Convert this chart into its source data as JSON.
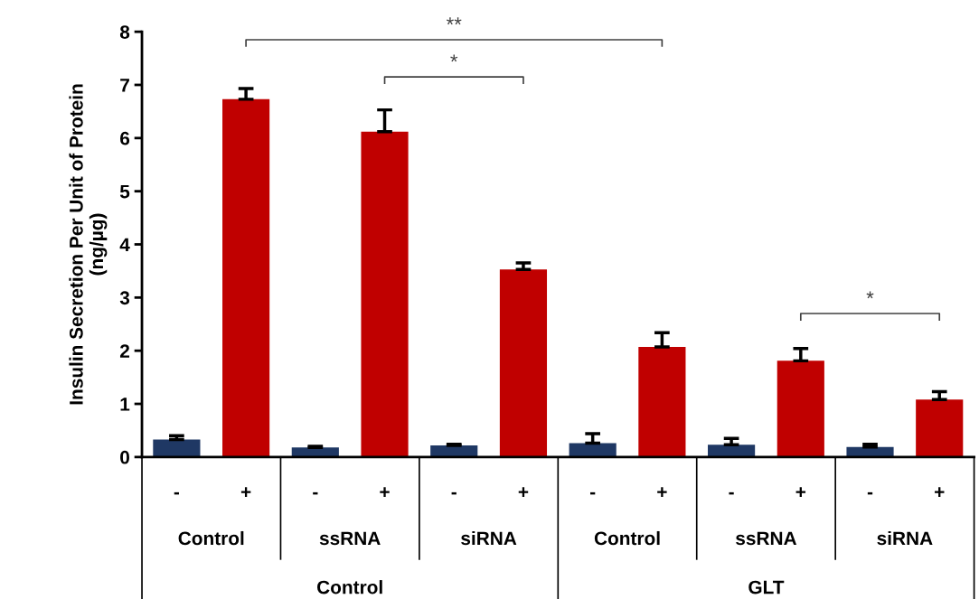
{
  "chart_data": {
    "type": "bar",
    "ylabel": "Insulin Secretion Per Unit of Protein\n(ng/µg)",
    "categories": [
      "-",
      "+",
      "-",
      "+",
      "-",
      "+",
      "-",
      "+",
      "-",
      "+",
      "-",
      "+"
    ],
    "values": [
      0.33,
      6.73,
      0.18,
      6.12,
      0.22,
      3.53,
      0.26,
      2.07,
      0.23,
      1.81,
      0.19,
      1.08
    ],
    "colors": [
      "#1f3864",
      "#c00000",
      "#1f3864",
      "#c00000",
      "#1f3864",
      "#c00000",
      "#1f3864",
      "#c00000",
      "#1f3864",
      "#c00000",
      "#1f3864",
      "#c00000"
    ],
    "errors": [
      [
        0.33,
        0.4
      ],
      [
        6.73,
        6.93
      ],
      [
        0.18,
        0.2
      ],
      [
        6.12,
        6.53
      ],
      [
        0.22,
        0.24
      ],
      [
        3.53,
        3.65
      ],
      [
        0.26,
        0.44
      ],
      [
        2.07,
        2.34
      ],
      [
        0.23,
        0.35
      ],
      [
        1.81,
        2.04
      ],
      [
        0.19,
        0.24
      ],
      [
        1.08,
        1.23
      ]
    ],
    "ylim": [
      0,
      8
    ],
    "yticks": [
      0,
      1,
      2,
      3,
      4,
      5,
      6,
      7,
      8
    ],
    "grid": false,
    "legend": false,
    "annotations": [
      "Control",
      "ssRNA",
      "siRNA",
      "Control",
      "ssRNA",
      "siRNA",
      "Control",
      "GLT",
      "**",
      "*",
      "*"
    ]
  }
}
